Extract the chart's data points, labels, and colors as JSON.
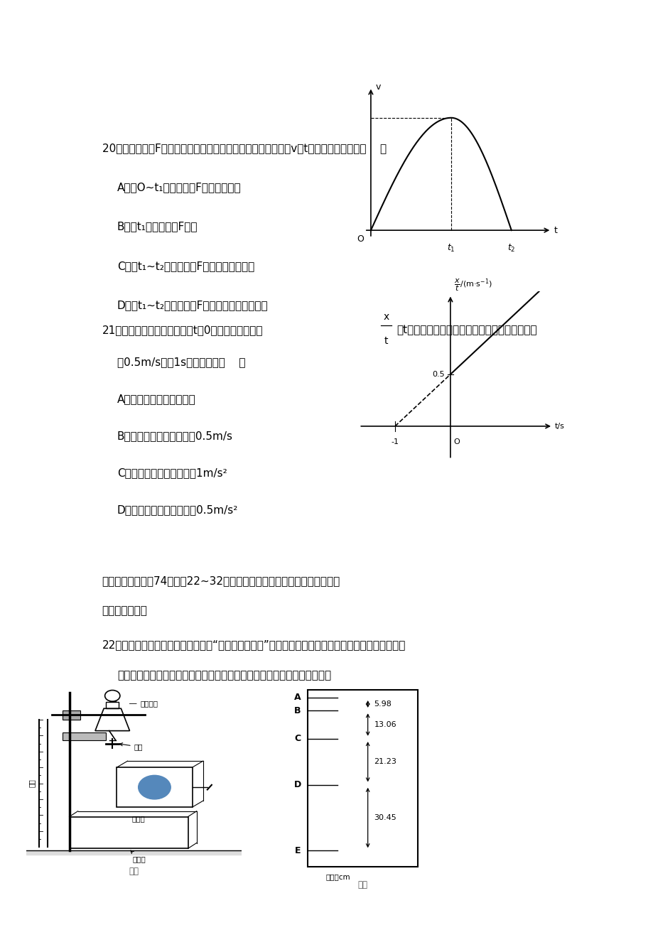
{
  "bg_color": "#ffffff",
  "text_color": "#000000",
  "page_width": 9.2,
  "page_height": 13.02,
  "q20_text": "20．受水平外力F作用的物体，在粗糙水平面上作直线运动，其v－t图线如图所示，则（    ）",
  "q20_options": [
    "A．在O~t₁秒内，外力F大小不断增大",
    "B．在t₁时刻，外力F为零",
    "C．在t₁~t₂秒内，外力F大小可能不断减小",
    "D．在t₁~t₂秒内，外力F大小可能先减小后增大"
  ],
  "q21_text3": "为0.5m/s和－1s，由此可知（    ）",
  "q21_options": [
    "A．物体做变加速直线运动",
    "B．物体的初速度的大小为0.5m/s",
    "C．物体的加速度的大小为1m/s²",
    "D．物体的加速度的大小为0.5m/s²"
  ],
  "section3_text": "三、非选择题：共74分。第22~32题为必考题，每个试题考生都必须作答。",
  "section3a_text": "（一）必考题：",
  "q22_text": "22．小敏同学在暗室中用图示装置做“测定重力加速度”的实验，用到的实验器材有：分液漏斗、阀门、",
  "q22_text2": "支架、米尺、接水盒、一根荧光刻度的米尺、频闪仪。具体实验步骤如下：",
  "figure1_caption": "图甲",
  "figure2_caption": "图乙",
  "figure2_points": [
    "A",
    "B",
    "C",
    "D",
    "E"
  ],
  "figure2_values": [
    "5.98",
    "13.06",
    "21.23",
    "30.45"
  ],
  "figure2_unit": "单位：cm"
}
